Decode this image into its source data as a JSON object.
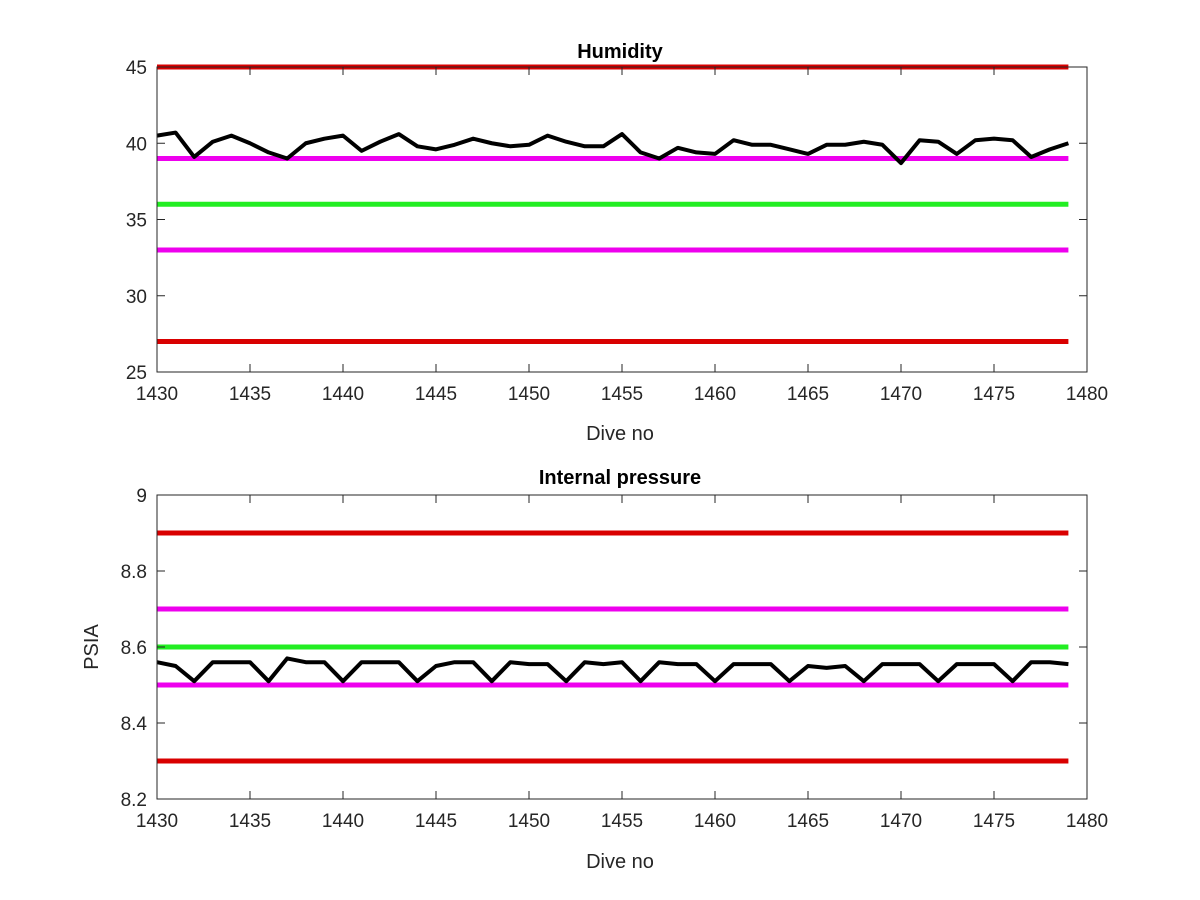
{
  "colors": {
    "red_limit": "#d90000",
    "magenta_limit": "#ee00ee",
    "green_target": "#22ee22",
    "data_line": "#000000",
    "axis": "#262626"
  },
  "chart_data": [
    {
      "type": "line",
      "title": "Humidity",
      "xlabel": "Dive no",
      "ylabel": "",
      "xlim": [
        1430,
        1480
      ],
      "ylim": [
        25,
        45
      ],
      "xticks": [
        1430,
        1435,
        1440,
        1445,
        1450,
        1455,
        1460,
        1465,
        1470,
        1475,
        1480
      ],
      "yticks": [
        25,
        30,
        35,
        40,
        45
      ],
      "grid": false,
      "hlines": [
        {
          "y": 45,
          "color": "red"
        },
        {
          "y": 39,
          "color": "magenta"
        },
        {
          "y": 36,
          "color": "green"
        },
        {
          "y": 33,
          "color": "magenta"
        },
        {
          "y": 27,
          "color": "red"
        }
      ],
      "series": [
        {
          "x": [
            1430,
            1431,
            1432,
            1433,
            1434,
            1435,
            1436,
            1437,
            1438,
            1439,
            1440,
            1441,
            1442,
            1443,
            1444,
            1445,
            1446,
            1447,
            1448,
            1449,
            1450,
            1451,
            1452,
            1453,
            1454,
            1455,
            1456,
            1457,
            1458,
            1459,
            1460,
            1461,
            1462,
            1463,
            1464,
            1465,
            1466,
            1467,
            1468,
            1469,
            1470,
            1471,
            1472,
            1473,
            1474,
            1475,
            1476,
            1477,
            1478,
            1479
          ],
          "y": [
            40.5,
            40.7,
            39.1,
            40.1,
            40.5,
            40.0,
            39.4,
            39.0,
            40.0,
            40.3,
            40.5,
            39.5,
            40.1,
            40.6,
            39.8,
            39.6,
            39.9,
            40.3,
            40.0,
            39.8,
            39.9,
            40.5,
            40.1,
            39.8,
            39.8,
            40.6,
            39.4,
            39.0,
            39.7,
            39.4,
            39.3,
            40.2,
            39.9,
            39.9,
            39.6,
            39.3,
            39.9,
            39.9,
            40.1,
            39.9,
            38.7,
            40.2,
            40.1,
            39.3,
            40.2,
            40.3,
            40.2,
            39.1,
            39.6,
            40.0
          ]
        }
      ]
    },
    {
      "type": "line",
      "title": "Internal pressure",
      "xlabel": "Dive no",
      "ylabel": "PSIA",
      "xlim": [
        1430,
        1480
      ],
      "ylim": [
        8.2,
        9.0
      ],
      "xticks": [
        1430,
        1435,
        1440,
        1445,
        1450,
        1455,
        1460,
        1465,
        1470,
        1475,
        1480
      ],
      "yticks": [
        8.2,
        8.4,
        8.6,
        8.8,
        9.0
      ],
      "ytick_labels": [
        "8.2",
        "8.4",
        "8.6",
        "8.8",
        "9"
      ],
      "grid": false,
      "hlines": [
        {
          "y": 8.9,
          "color": "red"
        },
        {
          "y": 8.7,
          "color": "magenta"
        },
        {
          "y": 8.6,
          "color": "green"
        },
        {
          "y": 8.5,
          "color": "magenta"
        },
        {
          "y": 8.3,
          "color": "red"
        }
      ],
      "series": [
        {
          "x": [
            1430,
            1431,
            1432,
            1433,
            1434,
            1435,
            1436,
            1437,
            1438,
            1439,
            1440,
            1441,
            1442,
            1443,
            1444,
            1445,
            1446,
            1447,
            1448,
            1449,
            1450,
            1451,
            1452,
            1453,
            1454,
            1455,
            1456,
            1457,
            1458,
            1459,
            1460,
            1461,
            1462,
            1463,
            1464,
            1465,
            1466,
            1467,
            1468,
            1469,
            1470,
            1471,
            1472,
            1473,
            1474,
            1475,
            1476,
            1477,
            1478,
            1479
          ],
          "y": [
            8.56,
            8.55,
            8.51,
            8.56,
            8.56,
            8.56,
            8.51,
            8.57,
            8.56,
            8.56,
            8.51,
            8.56,
            8.56,
            8.56,
            8.51,
            8.55,
            8.56,
            8.56,
            8.51,
            8.56,
            8.555,
            8.555,
            8.51,
            8.56,
            8.555,
            8.56,
            8.51,
            8.56,
            8.555,
            8.555,
            8.51,
            8.555,
            8.555,
            8.555,
            8.51,
            8.55,
            8.545,
            8.55,
            8.51,
            8.555,
            8.555,
            8.555,
            8.51,
            8.555,
            8.555,
            8.555,
            8.51,
            8.56,
            8.56,
            8.555
          ]
        }
      ]
    }
  ]
}
